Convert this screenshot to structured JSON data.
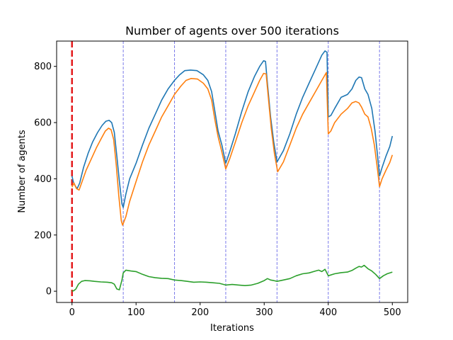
{
  "chart_data": {
    "type": "line",
    "title": "Number of agents over 500 iterations",
    "xlabel": "Iterations",
    "ylabel": "Number of agents",
    "xlim": [
      -24,
      524
    ],
    "ylim": [
      -40,
      890
    ],
    "xticks": [
      0,
      100,
      200,
      300,
      400,
      500
    ],
    "yticks": [
      0,
      200,
      400,
      600,
      800
    ],
    "grid": false,
    "legend": "none",
    "vlines": [
      {
        "x": 0,
        "color": "#e41a1c",
        "style": "dashed-thick"
      },
      {
        "x": 80,
        "color": "#7b7bea",
        "style": "dashed-thin"
      },
      {
        "x": 160,
        "color": "#7b7bea",
        "style": "dashed-thin"
      },
      {
        "x": 240,
        "color": "#7b7bea",
        "style": "dashed-thin"
      },
      {
        "x": 320,
        "color": "#7b7bea",
        "style": "dashed-thin"
      },
      {
        "x": 400,
        "color": "#7b7bea",
        "style": "dashed-thin"
      },
      {
        "x": 480,
        "color": "#7b7bea",
        "style": "dashed-thin"
      }
    ],
    "series": [
      {
        "color": "#1f77b4",
        "points": [
          [
            0,
            410
          ],
          [
            2,
            390
          ],
          [
            5,
            375
          ],
          [
            8,
            365
          ],
          [
            12,
            385
          ],
          [
            18,
            440
          ],
          [
            25,
            490
          ],
          [
            32,
            530
          ],
          [
            40,
            565
          ],
          [
            47,
            590
          ],
          [
            53,
            605
          ],
          [
            58,
            608
          ],
          [
            62,
            600
          ],
          [
            66,
            565
          ],
          [
            70,
            480
          ],
          [
            74,
            390
          ],
          [
            78,
            310
          ],
          [
            80,
            298
          ],
          [
            84,
            345
          ],
          [
            90,
            400
          ],
          [
            100,
            455
          ],
          [
            110,
            520
          ],
          [
            120,
            580
          ],
          [
            130,
            630
          ],
          [
            140,
            680
          ],
          [
            150,
            720
          ],
          [
            160,
            750
          ],
          [
            168,
            770
          ],
          [
            176,
            785
          ],
          [
            185,
            787
          ],
          [
            195,
            785
          ],
          [
            205,
            770
          ],
          [
            212,
            750
          ],
          [
            218,
            710
          ],
          [
            223,
            640
          ],
          [
            228,
            570
          ],
          [
            234,
            520
          ],
          [
            240,
            455
          ],
          [
            246,
            495
          ],
          [
            255,
            560
          ],
          [
            265,
            640
          ],
          [
            275,
            710
          ],
          [
            285,
            765
          ],
          [
            293,
            800
          ],
          [
            299,
            820
          ],
          [
            302,
            818
          ],
          [
            305,
            740
          ],
          [
            310,
            620
          ],
          [
            315,
            530
          ],
          [
            320,
            460
          ],
          [
            330,
            500
          ],
          [
            340,
            560
          ],
          [
            350,
            630
          ],
          [
            360,
            690
          ],
          [
            370,
            740
          ],
          [
            380,
            790
          ],
          [
            390,
            840
          ],
          [
            395,
            855
          ],
          [
            398,
            850
          ],
          [
            400,
            620
          ],
          [
            404,
            625
          ],
          [
            410,
            650
          ],
          [
            420,
            690
          ],
          [
            430,
            700
          ],
          [
            437,
            720
          ],
          [
            443,
            750
          ],
          [
            448,
            762
          ],
          [
            452,
            760
          ],
          [
            457,
            720
          ],
          [
            462,
            700
          ],
          [
            468,
            650
          ],
          [
            473,
            570
          ],
          [
            477,
            480
          ],
          [
            480,
            410
          ],
          [
            484,
            440
          ],
          [
            490,
            480
          ],
          [
            496,
            515
          ],
          [
            500,
            552
          ]
        ]
      },
      {
        "color": "#ff7f0e",
        "points": [
          [
            0,
            370
          ],
          [
            3,
            385
          ],
          [
            7,
            365
          ],
          [
            11,
            360
          ],
          [
            15,
            385
          ],
          [
            22,
            430
          ],
          [
            30,
            470
          ],
          [
            38,
            510
          ],
          [
            46,
            545
          ],
          [
            52,
            570
          ],
          [
            57,
            580
          ],
          [
            61,
            575
          ],
          [
            65,
            540
          ],
          [
            69,
            450
          ],
          [
            73,
            340
          ],
          [
            77,
            250
          ],
          [
            79,
            235
          ],
          [
            84,
            265
          ],
          [
            90,
            320
          ],
          [
            100,
            390
          ],
          [
            110,
            460
          ],
          [
            120,
            520
          ],
          [
            130,
            570
          ],
          [
            140,
            620
          ],
          [
            150,
            660
          ],
          [
            160,
            700
          ],
          [
            170,
            730
          ],
          [
            178,
            750
          ],
          [
            186,
            757
          ],
          [
            196,
            755
          ],
          [
            205,
            740
          ],
          [
            212,
            720
          ],
          [
            218,
            680
          ],
          [
            223,
            610
          ],
          [
            228,
            550
          ],
          [
            234,
            495
          ],
          [
            240,
            435
          ],
          [
            246,
            470
          ],
          [
            255,
            530
          ],
          [
            265,
            600
          ],
          [
            275,
            660
          ],
          [
            285,
            710
          ],
          [
            293,
            750
          ],
          [
            299,
            775
          ],
          [
            303,
            773
          ],
          [
            306,
            700
          ],
          [
            311,
            580
          ],
          [
            316,
            490
          ],
          [
            321,
            425
          ],
          [
            330,
            460
          ],
          [
            340,
            520
          ],
          [
            350,
            580
          ],
          [
            360,
            630
          ],
          [
            370,
            670
          ],
          [
            380,
            710
          ],
          [
            390,
            750
          ],
          [
            397,
            778
          ],
          [
            400,
            560
          ],
          [
            404,
            570
          ],
          [
            410,
            600
          ],
          [
            420,
            630
          ],
          [
            430,
            650
          ],
          [
            437,
            670
          ],
          [
            443,
            675
          ],
          [
            448,
            670
          ],
          [
            452,
            655
          ],
          [
            457,
            630
          ],
          [
            462,
            620
          ],
          [
            467,
            580
          ],
          [
            472,
            520
          ],
          [
            477,
            430
          ],
          [
            480,
            372
          ],
          [
            484,
            400
          ],
          [
            490,
            430
          ],
          [
            496,
            458
          ],
          [
            500,
            485
          ]
        ]
      },
      {
        "color": "#2ca02c",
        "points": [
          [
            0,
            0
          ],
          [
            3,
            2
          ],
          [
            6,
            8
          ],
          [
            10,
            25
          ],
          [
            15,
            35
          ],
          [
            20,
            38
          ],
          [
            28,
            37
          ],
          [
            35,
            35
          ],
          [
            45,
            33
          ],
          [
            55,
            32
          ],
          [
            62,
            30
          ],
          [
            66,
            25
          ],
          [
            70,
            8
          ],
          [
            74,
            5
          ],
          [
            78,
            40
          ],
          [
            80,
            65
          ],
          [
            84,
            75
          ],
          [
            92,
            72
          ],
          [
            100,
            70
          ],
          [
            110,
            60
          ],
          [
            120,
            52
          ],
          [
            130,
            48
          ],
          [
            140,
            46
          ],
          [
            150,
            45
          ],
          [
            160,
            40
          ],
          [
            170,
            38
          ],
          [
            180,
            35
          ],
          [
            190,
            32
          ],
          [
            200,
            33
          ],
          [
            210,
            32
          ],
          [
            220,
            30
          ],
          [
            230,
            28
          ],
          [
            240,
            22
          ],
          [
            250,
            24
          ],
          [
            260,
            22
          ],
          [
            270,
            20
          ],
          [
            280,
            22
          ],
          [
            290,
            28
          ],
          [
            300,
            38
          ],
          [
            305,
            45
          ],
          [
            310,
            40
          ],
          [
            315,
            38
          ],
          [
            320,
            35
          ],
          [
            330,
            40
          ],
          [
            340,
            45
          ],
          [
            350,
            55
          ],
          [
            360,
            62
          ],
          [
            370,
            65
          ],
          [
            380,
            72
          ],
          [
            385,
            75
          ],
          [
            390,
            70
          ],
          [
            395,
            78
          ],
          [
            400,
            55
          ],
          [
            410,
            62
          ],
          [
            420,
            66
          ],
          [
            430,
            68
          ],
          [
            437,
            74
          ],
          [
            443,
            82
          ],
          [
            448,
            88
          ],
          [
            452,
            86
          ],
          [
            456,
            92
          ],
          [
            462,
            80
          ],
          [
            468,
            72
          ],
          [
            474,
            60
          ],
          [
            480,
            45
          ],
          [
            486,
            55
          ],
          [
            492,
            62
          ],
          [
            500,
            68
          ]
        ]
      }
    ]
  }
}
